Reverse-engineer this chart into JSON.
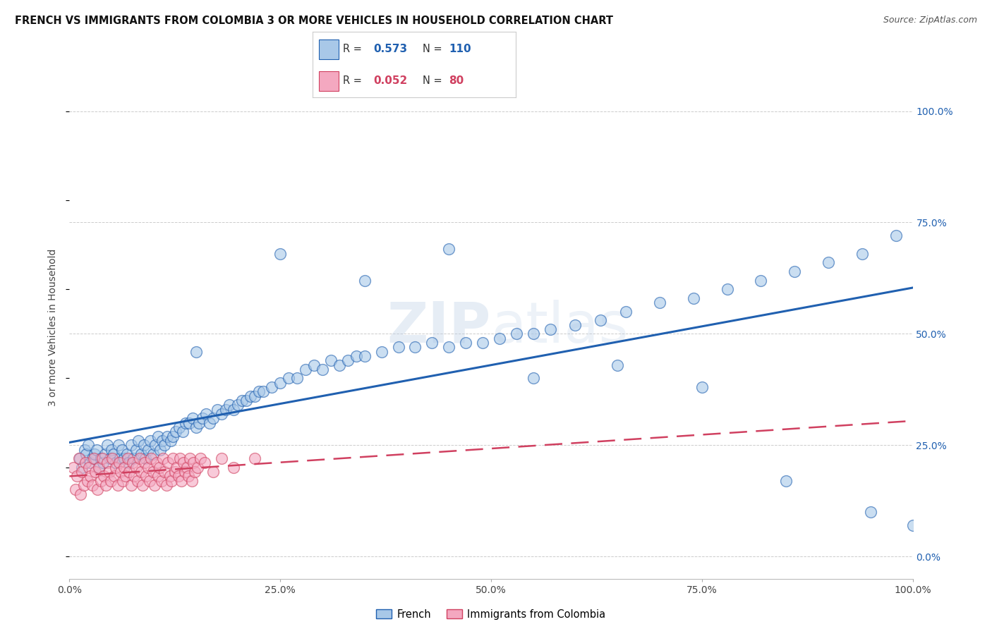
{
  "title": "FRENCH VS IMMIGRANTS FROM COLOMBIA 3 OR MORE VEHICLES IN HOUSEHOLD CORRELATION CHART",
  "source": "Source: ZipAtlas.com",
  "ylabel": "3 or more Vehicles in Household",
  "french_R": 0.573,
  "french_N": 110,
  "colombia_R": 0.052,
  "colombia_N": 80,
  "french_color": "#a8c8e8",
  "colombia_color": "#f4a8c0",
  "french_line_color": "#2060b0",
  "colombia_line_color": "#d04060",
  "watermark": "ZIPatlas",
  "ytick_vals": [
    0,
    25,
    50,
    75,
    100
  ],
  "xtick_vals": [
    0,
    25,
    50,
    75,
    100
  ],
  "french_x_points": [
    1.2,
    1.5,
    1.8,
    2.0,
    2.2,
    2.5,
    2.7,
    3.0,
    3.2,
    3.5,
    3.7,
    4.0,
    4.2,
    4.5,
    4.8,
    5.0,
    5.2,
    5.5,
    5.8,
    6.0,
    6.2,
    6.5,
    6.8,
    7.0,
    7.3,
    7.6,
    7.9,
    8.2,
    8.5,
    8.8,
    9.0,
    9.3,
    9.6,
    9.9,
    10.2,
    10.5,
    10.8,
    11.0,
    11.3,
    11.6,
    12.0,
    12.3,
    12.6,
    13.0,
    13.4,
    13.8,
    14.2,
    14.6,
    15.0,
    15.4,
    15.8,
    16.2,
    16.6,
    17.0,
    17.5,
    18.0,
    18.5,
    19.0,
    19.5,
    20.0,
    20.5,
    21.0,
    21.5,
    22.0,
    22.5,
    23.0,
    24.0,
    25.0,
    26.0,
    27.0,
    28.0,
    29.0,
    30.0,
    31.0,
    32.0,
    33.0,
    34.0,
    35.0,
    37.0,
    39.0,
    41.0,
    43.0,
    45.0,
    47.0,
    49.0,
    51.0,
    53.0,
    55.0,
    57.0,
    60.0,
    63.0,
    66.0,
    70.0,
    74.0,
    78.0,
    82.0,
    86.0,
    90.0,
    94.0,
    98.0,
    15.0,
    25.0,
    35.0,
    45.0,
    55.0,
    65.0,
    75.0,
    85.0,
    95.0,
    100.0
  ],
  "french_y_points": [
    22,
    20,
    24,
    23,
    25,
    21,
    22,
    23,
    24,
    20,
    22,
    21,
    23,
    25,
    22,
    24,
    23,
    21,
    25,
    22,
    24,
    22,
    23,
    21,
    25,
    22,
    24,
    26,
    23,
    25,
    22,
    24,
    26,
    23,
    25,
    27,
    24,
    26,
    25,
    27,
    26,
    27,
    28,
    29,
    28,
    30,
    30,
    31,
    29,
    30,
    31,
    32,
    30,
    31,
    33,
    32,
    33,
    34,
    33,
    34,
    35,
    35,
    36,
    36,
    37,
    37,
    38,
    39,
    40,
    40,
    42,
    43,
    42,
    44,
    43,
    44,
    45,
    45,
    46,
    47,
    47,
    48,
    47,
    48,
    48,
    49,
    50,
    50,
    51,
    52,
    53,
    55,
    57,
    58,
    60,
    62,
    64,
    66,
    68,
    72,
    46,
    68,
    62,
    69,
    40,
    43,
    38,
    17,
    10,
    7
  ],
  "colombia_x_points": [
    0.5,
    0.7,
    0.9,
    1.1,
    1.3,
    1.5,
    1.7,
    1.9,
    2.1,
    2.3,
    2.5,
    2.7,
    2.9,
    3.1,
    3.3,
    3.5,
    3.7,
    3.9,
    4.1,
    4.3,
    4.5,
    4.7,
    4.9,
    5.1,
    5.3,
    5.5,
    5.7,
    5.9,
    6.1,
    6.3,
    6.5,
    6.7,
    6.9,
    7.1,
    7.3,
    7.5,
    7.7,
    7.9,
    8.1,
    8.3,
    8.5,
    8.7,
    8.9,
    9.1,
    9.3,
    9.5,
    9.7,
    9.9,
    10.1,
    10.3,
    10.5,
    10.7,
    10.9,
    11.1,
    11.3,
    11.5,
    11.7,
    11.9,
    12.1,
    12.3,
    12.5,
    12.7,
    12.9,
    13.1,
    13.3,
    13.5,
    13.7,
    13.9,
    14.1,
    14.3,
    14.5,
    14.7,
    14.9,
    15.2,
    15.5,
    16.0,
    17.0,
    18.0,
    19.5,
    22.0
  ],
  "colombia_y_points": [
    20,
    15,
    18,
    22,
    14,
    19,
    16,
    21,
    17,
    20,
    18,
    16,
    22,
    19,
    15,
    20,
    17,
    22,
    18,
    16,
    21,
    19,
    17,
    22,
    18,
    20,
    16,
    21,
    19,
    17,
    20,
    18,
    22,
    19,
    16,
    21,
    18,
    20,
    17,
    22,
    19,
    16,
    21,
    18,
    20,
    17,
    22,
    19,
    16,
    21,
    18,
    20,
    17,
    22,
    19,
    16,
    21,
    18,
    17,
    22,
    19,
    20,
    18,
    22,
    17,
    21,
    19,
    20,
    18,
    22,
    17,
    21,
    19,
    20,
    22,
    21,
    19,
    22,
    20,
    22
  ]
}
